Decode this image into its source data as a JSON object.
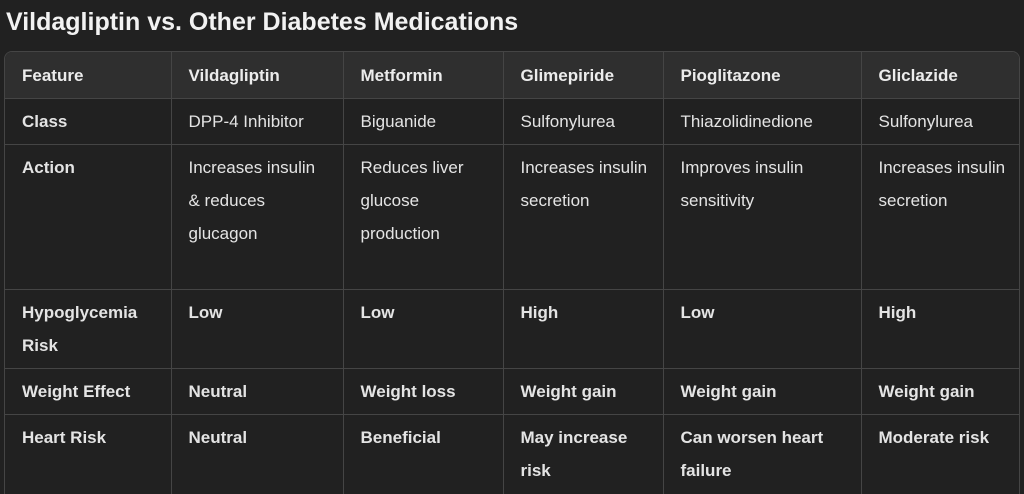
{
  "title": "Vildagliptin vs. Other Diabetes Medications",
  "table": {
    "headers": [
      "Feature",
      "Vildagliptin",
      "Metformin",
      "Glimepiride",
      "Pioglitazone",
      "Gliclazide"
    ],
    "rows": [
      [
        "Class",
        "DPP-4 Inhibitor",
        "Biguanide",
        "Sulfonylurea",
        "Thiazolidinedione",
        "Sulfonylurea"
      ],
      [
        "Action",
        "Increases insulin & reduces glucagon",
        "Reduces liver glucose production",
        "Increases insulin secretion",
        "Improves insulin sensitivity",
        "Increases insulin secretion"
      ],
      [
        "Hypoglycemia Risk",
        "Low",
        "Low",
        "High",
        "Low",
        "High"
      ],
      [
        "Weight Effect",
        "Neutral",
        "Weight loss",
        "Weight gain",
        "Weight gain",
        "Weight gain"
      ],
      [
        "Heart Risk",
        "Neutral",
        "Beneficial",
        "May increase risk",
        "Can worsen heart failure",
        "Moderate risk"
      ]
    ]
  }
}
